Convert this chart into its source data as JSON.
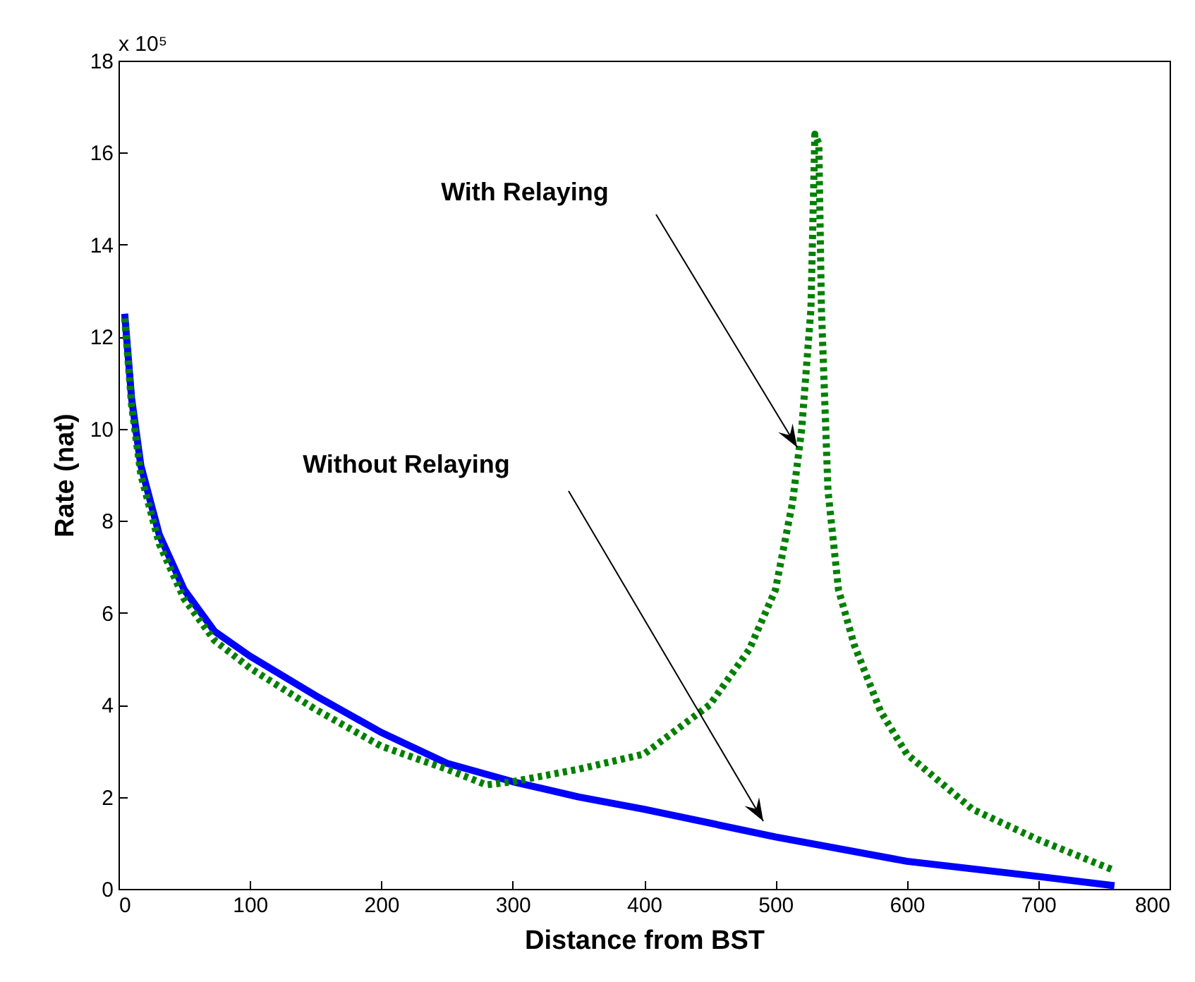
{
  "chart_data": {
    "type": "line",
    "xlabel": "Distance from BST",
    "ylabel": "Rate (nat)",
    "xlim": [
      0,
      800
    ],
    "ylim": [
      0,
      18
    ],
    "xticks": [
      0,
      100,
      200,
      300,
      400,
      500,
      600,
      700,
      800
    ],
    "yticks": [
      0,
      2,
      4,
      6,
      8,
      10,
      12,
      14,
      16,
      18
    ],
    "grid": false,
    "annotations": [
      "x 10⁵",
      "With Relaying",
      "Without Relaying"
    ],
    "series": [
      {
        "color": "#0000ff",
        "line_style": "solid",
        "x": [
          4.7,
          10,
          17,
          31,
          50,
          73,
          100,
          150,
          200,
          250,
          300,
          350,
          400,
          500,
          600,
          700,
          758
        ],
        "values": [
          12.5,
          10.65,
          9.2,
          7.7,
          6.5,
          5.6,
          5.06,
          4.2,
          3.4,
          2.73,
          2.33,
          2.0,
          1.73,
          1.13,
          0.6,
          0.27,
          0.07
        ]
      },
      {
        "color": "#008000",
        "line_style": "dotted",
        "x": [
          4.7,
          10,
          17,
          31,
          50,
          73,
          100,
          150,
          200,
          250,
          280,
          300,
          350,
          400,
          450,
          480,
          500,
          513,
          520,
          527,
          530,
          533,
          535,
          540,
          548,
          560,
          580,
          600,
          650,
          700,
          758
        ],
        "values": [
          12.4,
          10.5,
          9.0,
          7.5,
          6.3,
          5.4,
          4.8,
          3.9,
          3.1,
          2.6,
          2.26,
          2.33,
          2.6,
          2.93,
          4.0,
          5.2,
          6.5,
          8.4,
          10.0,
          12.6,
          16.4,
          16.2,
          12.6,
          8.65,
          6.5,
          5.3,
          3.86,
          2.93,
          1.73,
          1.07,
          0.4
        ]
      }
    ]
  }
}
